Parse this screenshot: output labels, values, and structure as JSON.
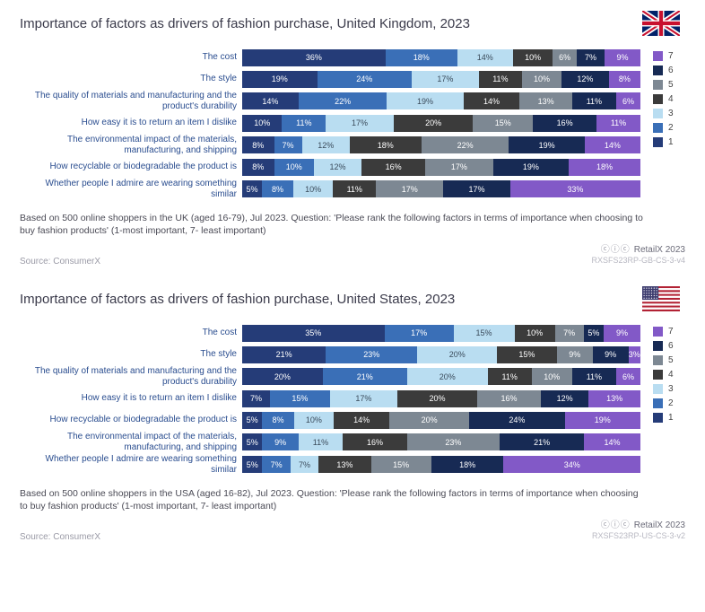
{
  "colors": {
    "1": "#253c78",
    "2": "#3a6fb7",
    "3": "#b9ddf1",
    "4": "#3b3b3b",
    "5": "#7d8893",
    "6": "#172a54",
    "7": "#8259c7"
  },
  "legend_labels": [
    "7",
    "6",
    "5",
    "4",
    "3",
    "2",
    "1"
  ],
  "panels": [
    {
      "title": "Importance of factors as drivers of fashion purchase, United Kingdom, 2023",
      "flag": "uk",
      "rows": [
        {
          "label": "The cost",
          "values": [
            36,
            18,
            14,
            10,
            6,
            7,
            9
          ]
        },
        {
          "label": "The style",
          "values": [
            19,
            24,
            17,
            11,
            10,
            12,
            8
          ]
        },
        {
          "label": "The quality of materials and manufacturing and the product's durability",
          "values": [
            14,
            22,
            19,
            14,
            13,
            11,
            6
          ]
        },
        {
          "label": "How easy it is to return an item I dislike",
          "values": [
            10,
            11,
            17,
            20,
            15,
            16,
            11
          ]
        },
        {
          "label": "The environmental impact of the materials, manufacturing, and shipping",
          "values": [
            8,
            7,
            12,
            18,
            22,
            19,
            14
          ]
        },
        {
          "label": "How recyclable or biodegradable the product is",
          "values": [
            8,
            10,
            12,
            16,
            17,
            19,
            18
          ]
        },
        {
          "label": "Whether people I admire are wearing something similar",
          "values": [
            5,
            8,
            10,
            11,
            17,
            17,
            33
          ]
        }
      ],
      "footnote": "Based on 500 online shoppers in the UK (aged 16-79), Jul 2023. Question: 'Please rank the following factors in terms of importance when choosing to buy fashion products' (1-most important, 7- least important)",
      "source": "Source: ConsumerX",
      "brand": "RetailX 2023",
      "ref": "RXSFS23RP-GB-CS-3-v4"
    },
    {
      "title": "Importance of factors as drivers of fashion purchase, United States, 2023",
      "flag": "us",
      "rows": [
        {
          "label": "The cost",
          "values": [
            35,
            17,
            15,
            10,
            7,
            5,
            9
          ]
        },
        {
          "label": "The style",
          "values": [
            21,
            23,
            20,
            15,
            9,
            9,
            3
          ]
        },
        {
          "label": "The quality of materials and manufacturing and the product's durability",
          "values": [
            20,
            21,
            20,
            11,
            10,
            11,
            6
          ]
        },
        {
          "label": "How easy it is to return an item I dislike",
          "values": [
            7,
            15,
            17,
            20,
            16,
            12,
            13
          ]
        },
        {
          "label": "How recyclable or biodegradable the product is",
          "values": [
            5,
            8,
            10,
            14,
            20,
            24,
            19
          ]
        },
        {
          "label": "The environmental impact of the materials, manufacturing, and shipping",
          "values": [
            5,
            9,
            11,
            16,
            23,
            21,
            14
          ]
        },
        {
          "label": "Whether people I admire are wearing something similar",
          "values": [
            5,
            7,
            7,
            13,
            15,
            18,
            34
          ]
        }
      ],
      "footnote": "Based on 500 online shoppers in the USA (aged 16-82), Jul 2023. Question: 'Please rank the following factors in terms of importance when choosing to buy fashion products' (1-most important, 7- least important)",
      "source": "Source: ConsumerX",
      "brand": "RetailX 2023",
      "ref": "RXSFS23RP-US-CS-3-v2"
    }
  ]
}
